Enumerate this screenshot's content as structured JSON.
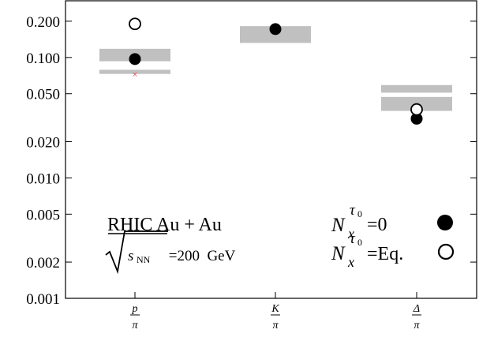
{
  "chart_data": {
    "type": "scatter",
    "y_scale": "log",
    "ylim": [
      0.001,
      0.3
    ],
    "yticks": [
      "0.001",
      "0.002",
      "0.005",
      "0.010",
      "0.020",
      "0.050",
      "0.100",
      "0.200"
    ],
    "categories": [
      {
        "num": "p",
        "den": "π"
      },
      {
        "num": "K",
        "den": "π"
      },
      {
        "num": "Δ",
        "den": "π"
      }
    ],
    "series": [
      {
        "marker": "filled-circle",
        "values": [
          0.097,
          0.172,
          0.031
        ]
      },
      {
        "marker": "open-circle",
        "values": [
          0.19,
          null,
          0.037
        ]
      }
    ],
    "bands": [
      {
        "category": 0,
        "ranges": [
          [
            0.093,
            0.118
          ],
          [
            0.073,
            0.079
          ]
        ]
      },
      {
        "category": 1,
        "ranges": [
          [
            0.132,
            0.182
          ]
        ]
      },
      {
        "category": 2,
        "ranges": [
          [
            0.051,
            0.059
          ],
          [
            0.036,
            0.047
          ]
        ]
      }
    ],
    "annotation": {
      "collision": "RHIC  Au + Au",
      "sqrt_s": "s",
      "sqrt_s_sub": "NN",
      "energy": " =200  GeV"
    },
    "legend": {
      "placement": "bottom-right",
      "entries": [
        {
          "N": "N",
          "sub": "x",
          "sup": "τ",
          "sup_sub": "0",
          "text": "=0",
          "marker": "filled-circle"
        },
        {
          "N": "N",
          "sub": "x",
          "sup": "τ",
          "sup_sub": "0",
          "text": "=Eq.",
          "marker": "open-circle"
        }
      ]
    },
    "colors": {
      "band": "#c0c0c0",
      "marker": "#000000",
      "stray_mark": "#e05050"
    }
  }
}
